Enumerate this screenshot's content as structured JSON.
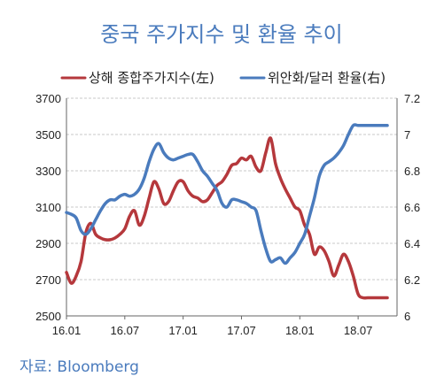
{
  "chart_data": {
    "type": "line",
    "title": "중국 주가지수 및 환율 추이",
    "source": "자료: Bloomberg",
    "x_ticks": [
      "16.01",
      "16.07",
      "17.01",
      "17.07",
      "18.01",
      "18.07"
    ],
    "x_tick_months": [
      0,
      6,
      12,
      18,
      24,
      30
    ],
    "x_range_months": [
      0,
      34
    ],
    "y_left": {
      "ticks": [
        "2500",
        "2700",
        "2900",
        "3100",
        "3300",
        "3500",
        "3700"
      ],
      "min": 2500,
      "max": 3700
    },
    "y_right": {
      "ticks": [
        "6",
        "6.2",
        "6.4",
        "6.6",
        "6.8",
        "7",
        "7.2"
      ],
      "min": 6.0,
      "max": 7.2
    },
    "grid": "dashed horizontal",
    "legend_position": "top",
    "series": [
      {
        "name": "상해 종합주가지수(左)",
        "axis": "left",
        "color": "#b5383c",
        "x": [
          0,
          0.5,
          1,
          1.5,
          2,
          2.5,
          3,
          3.5,
          4,
          4.5,
          5,
          5.5,
          6,
          6.5,
          7,
          7.5,
          8,
          8.5,
          9,
          9.5,
          10,
          10.5,
          11,
          11.5,
          12,
          12.5,
          13,
          13.5,
          14,
          14.5,
          15,
          15.5,
          16,
          16.5,
          17,
          17.5,
          18,
          18.5,
          19,
          19.5,
          20,
          20.5,
          21,
          21.5,
          22,
          22.5,
          23,
          23.5,
          24,
          24.5,
          25,
          25.5,
          26,
          26.5,
          27,
          27.5,
          28,
          28.5,
          29,
          29.5,
          30,
          30.5,
          31,
          31.5,
          32,
          32.5,
          33
        ],
        "values": [
          2740,
          2680,
          2720,
          2800,
          2960,
          3010,
          2950,
          2930,
          2920,
          2920,
          2930,
          2950,
          2980,
          3050,
          3080,
          3000,
          3050,
          3150,
          3240,
          3200,
          3120,
          3130,
          3190,
          3240,
          3240,
          3190,
          3160,
          3150,
          3130,
          3140,
          3180,
          3220,
          3240,
          3280,
          3330,
          3340,
          3370,
          3360,
          3380,
          3320,
          3300,
          3400,
          3480,
          3340,
          3260,
          3200,
          3150,
          3100,
          3080,
          3000,
          2950,
          2840,
          2880,
          2860,
          2800,
          2720,
          2780,
          2840,
          2800,
          2720,
          2620,
          2600,
          2600,
          2600,
          2600,
          2600,
          2600
        ]
      },
      {
        "name": "위안화/달러 환율(右)",
        "axis": "right",
        "color": "#4a7bbd",
        "x": [
          0,
          0.5,
          1,
          1.5,
          2,
          2.5,
          3,
          3.5,
          4,
          4.5,
          5,
          5.5,
          6,
          6.5,
          7,
          7.5,
          8,
          8.5,
          9,
          9.5,
          10,
          10.5,
          11,
          11.5,
          12,
          12.5,
          13,
          13.5,
          14,
          14.5,
          15,
          15.5,
          16,
          16.5,
          17,
          17.5,
          18,
          18.5,
          19,
          19.5,
          20,
          20.5,
          21,
          21.5,
          22,
          22.5,
          23,
          23.5,
          24,
          24.5,
          25,
          25.5,
          26,
          26.5,
          27,
          27.5,
          28,
          28.5,
          29,
          29.5,
          30,
          30.5,
          31,
          31.5,
          32,
          32.5,
          33
        ],
        "values": [
          6.57,
          6.56,
          6.54,
          6.47,
          6.45,
          6.48,
          6.53,
          6.58,
          6.62,
          6.64,
          6.64,
          6.66,
          6.67,
          6.66,
          6.67,
          6.7,
          6.76,
          6.85,
          6.92,
          6.95,
          6.9,
          6.87,
          6.86,
          6.87,
          6.88,
          6.89,
          6.89,
          6.85,
          6.8,
          6.77,
          6.73,
          6.69,
          6.62,
          6.6,
          6.64,
          6.64,
          6.63,
          6.62,
          6.6,
          6.58,
          6.47,
          6.37,
          6.3,
          6.31,
          6.32,
          6.29,
          6.32,
          6.35,
          6.4,
          6.45,
          6.55,
          6.65,
          6.77,
          6.83,
          6.85,
          6.87,
          6.9,
          6.94,
          7.0,
          7.05,
          7.05,
          7.05,
          7.05,
          7.05,
          7.05,
          7.05,
          7.05
        ]
      }
    ]
  }
}
